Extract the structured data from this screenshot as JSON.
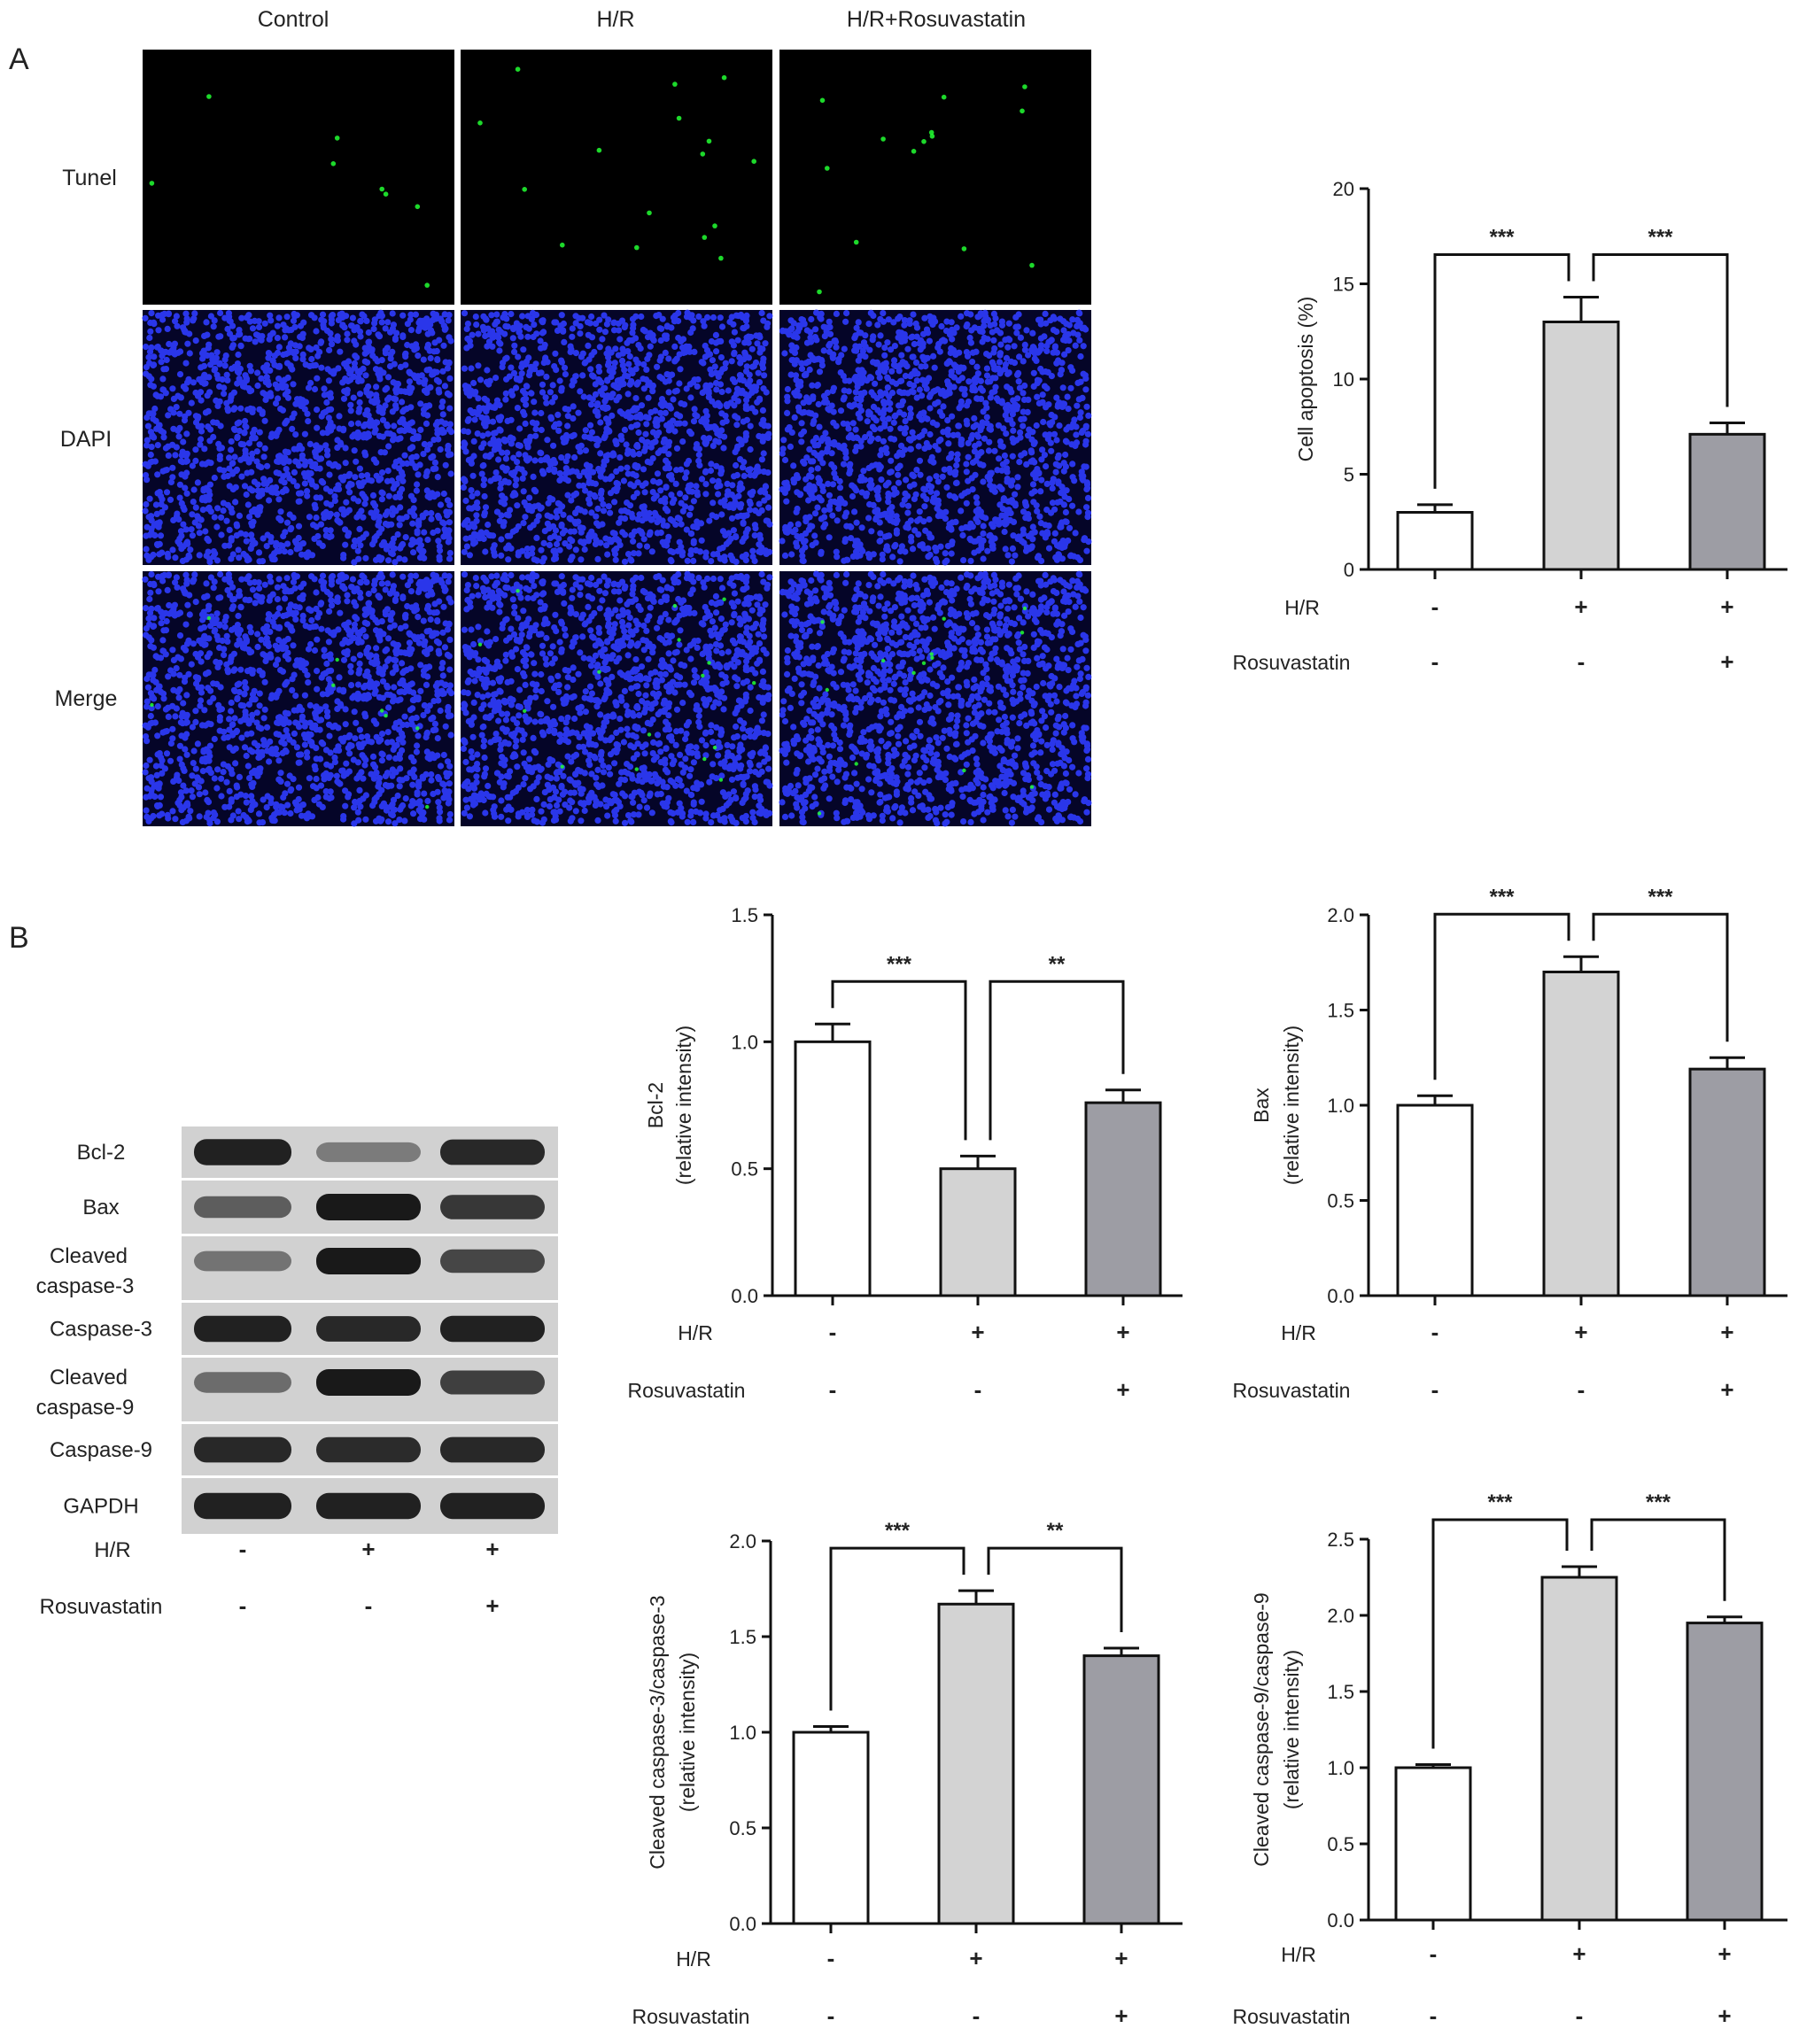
{
  "panel_a": {
    "letter": "A",
    "columns": [
      "Control",
      "H/R",
      "H/R+Rosuvastatin"
    ],
    "rows": [
      "Tunel",
      "DAPI",
      "Merge"
    ],
    "colors": {
      "tunel_background": "#000000",
      "tunel_dot": "#22ff33",
      "dapi_background": "#050528",
      "dapi_nucleus": "#2f3cff"
    }
  },
  "panel_b": {
    "letter": "B",
    "blot_labels": [
      "Bcl-2",
      "Bax",
      "Cleaved caspase-3",
      "Caspase-3",
      "Cleaved caspase-9",
      "Caspase-9",
      "GAPDH"
    ],
    "condition_rows": [
      {
        "name": "H/R",
        "values": [
          "-",
          "+",
          "+"
        ]
      },
      {
        "name": "Rosuvastatin",
        "values": [
          "-",
          "-",
          "+"
        ]
      }
    ]
  },
  "chart_data": [
    {
      "id": "apoptosis",
      "type": "bar",
      "ylabel": [
        "Cell apoptosis (%)"
      ],
      "ylim": [
        0,
        20
      ],
      "yticks": [
        "0",
        "5",
        "10",
        "15",
        "20"
      ],
      "values": [
        3.0,
        13.0,
        7.1
      ],
      "errors": [
        0.4,
        1.3,
        0.6
      ],
      "bar_colors": [
        "#ffffff",
        "#d3d3d3",
        "#9d9da4"
      ],
      "significance": [
        {
          "from": 0,
          "to": 1,
          "label": "***"
        },
        {
          "from": 1,
          "to": 2,
          "label": "***"
        }
      ],
      "condition_rows": [
        {
          "name": "H/R",
          "values": [
            "-",
            "+",
            "+"
          ]
        },
        {
          "name": "Rosuvastatin",
          "values": [
            "-",
            "-",
            "+"
          ]
        }
      ]
    },
    {
      "id": "bcl2",
      "type": "bar",
      "ylabel": [
        "Bcl-2",
        "(relative intensity)"
      ],
      "ylim": [
        0,
        1.5
      ],
      "yticks": [
        "0.0",
        "0.5",
        "1.0",
        "1.5"
      ],
      "values": [
        1.0,
        0.5,
        0.76
      ],
      "errors": [
        0.07,
        0.05,
        0.05
      ],
      "bar_colors": [
        "#ffffff",
        "#d3d3d3",
        "#9d9da4"
      ],
      "significance": [
        {
          "from": 0,
          "to": 1,
          "label": "***"
        },
        {
          "from": 1,
          "to": 2,
          "label": "**"
        }
      ],
      "condition_rows": [
        {
          "name": "H/R",
          "values": [
            "-",
            "+",
            "+"
          ]
        },
        {
          "name": "Rosuvastatin",
          "values": [
            "-",
            "-",
            "+"
          ]
        }
      ]
    },
    {
      "id": "bax",
      "type": "bar",
      "ylabel": [
        "Bax",
        "(relative intensity)"
      ],
      "ylim": [
        0,
        2.0
      ],
      "yticks": [
        "0.0",
        "0.5",
        "1.0",
        "1.5",
        "2.0"
      ],
      "values": [
        1.0,
        1.7,
        1.19
      ],
      "errors": [
        0.05,
        0.08,
        0.06
      ],
      "bar_colors": [
        "#ffffff",
        "#d3d3d3",
        "#9d9da4"
      ],
      "significance": [
        {
          "from": 0,
          "to": 1,
          "label": "***"
        },
        {
          "from": 1,
          "to": 2,
          "label": "***"
        }
      ],
      "condition_rows": [
        {
          "name": "H/R",
          "values": [
            "-",
            "+",
            "+"
          ]
        },
        {
          "name": "Rosuvastatin",
          "values": [
            "-",
            "-",
            "+"
          ]
        }
      ]
    },
    {
      "id": "casp3",
      "type": "bar",
      "ylabel": [
        "Cleaved caspase-3/caspase-3",
        "(relative intensity)"
      ],
      "ylim": [
        0,
        2.0
      ],
      "yticks": [
        "0.0",
        "0.5",
        "1.0",
        "1.5",
        "2.0"
      ],
      "values": [
        1.0,
        1.67,
        1.4
      ],
      "errors": [
        0.03,
        0.07,
        0.04
      ],
      "bar_colors": [
        "#ffffff",
        "#d3d3d3",
        "#9d9da4"
      ],
      "significance": [
        {
          "from": 0,
          "to": 1,
          "label": "***"
        },
        {
          "from": 1,
          "to": 2,
          "label": "**"
        }
      ],
      "condition_rows": [
        {
          "name": "H/R",
          "values": [
            "-",
            "+",
            "+"
          ]
        },
        {
          "name": "Rosuvastatin",
          "values": [
            "-",
            "-",
            "+"
          ]
        }
      ]
    },
    {
      "id": "casp9",
      "type": "bar",
      "ylabel": [
        "Cleaved caspase-9/caspase-9",
        "(relative intensity)"
      ],
      "ylim": [
        0,
        2.5
      ],
      "yticks": [
        "0.0",
        "0.5",
        "1.0",
        "1.5",
        "2.0",
        "2.5"
      ],
      "values": [
        1.0,
        2.25,
        1.95
      ],
      "errors": [
        0.02,
        0.07,
        0.04
      ],
      "bar_colors": [
        "#ffffff",
        "#d3d3d3",
        "#9d9da4"
      ],
      "significance": [
        {
          "from": 0,
          "to": 1,
          "label": "***"
        },
        {
          "from": 1,
          "to": 2,
          "label": "***"
        }
      ],
      "condition_rows": [
        {
          "name": "H/R",
          "values": [
            "-",
            "+",
            "+"
          ]
        },
        {
          "name": "Rosuvastatin",
          "values": [
            "-",
            "-",
            "+"
          ]
        }
      ]
    }
  ]
}
